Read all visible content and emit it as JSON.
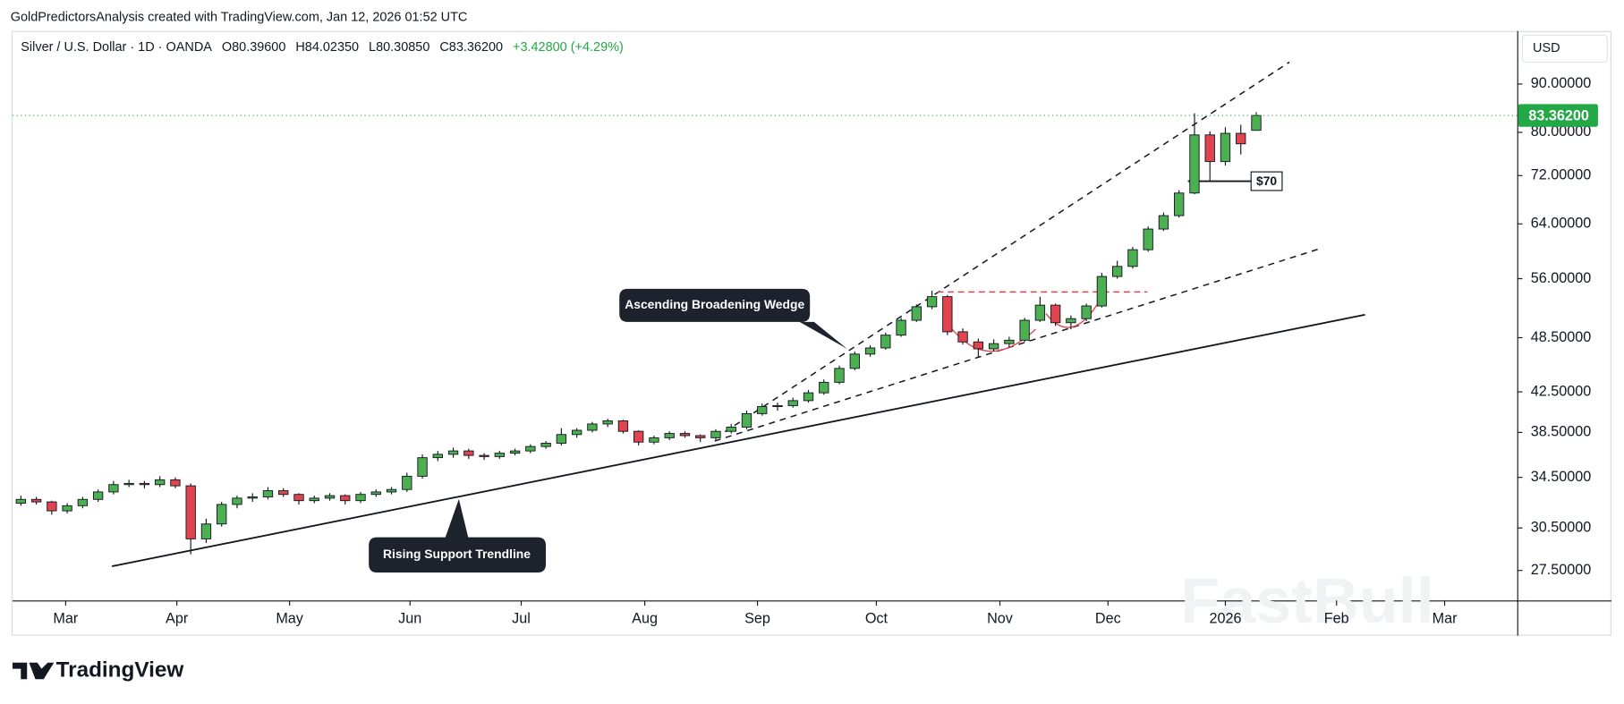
{
  "header": "GoldPredictorsAnalysis created with TradingView.com, Jan 12, 2026 01:52 UTC",
  "chart_data": {
    "type": "candlestick",
    "title": "Silver / U.S. Dollar · 1D · OANDA",
    "ohlc_legend": [
      "O80.39600",
      "H84.02350",
      "L80.30850",
      "C83.36200",
      "+3.42800 (+4.29%)"
    ],
    "currency": "USD",
    "log_scale": true,
    "grid": false,
    "up_color": "#4caf50",
    "down_color": "#e0454f",
    "last_label": "83.36200",
    "last_label_color": "#22a845",
    "open": [
      32.4,
      32.7,
      32.5,
      31.8,
      32.2,
      32.7,
      33.3,
      33.9,
      34.0,
      33.9,
      34.3,
      33.8,
      29.7,
      30.8,
      32.3,
      32.8,
      32.9,
      33.4,
      33.1,
      32.6,
      32.8,
      33.0,
      32.6,
      33.1,
      33.3,
      33.5,
      34.6,
      36.2,
      36.5,
      36.8,
      36.4,
      36.3,
      36.6,
      36.8,
      37.2,
      37.5,
      38.3,
      38.7,
      39.3,
      39.6,
      38.6,
      37.6,
      38.0,
      38.4,
      38.2,
      38.0,
      38.6,
      39.0,
      40.3,
      41.0,
      41.1,
      41.6,
      42.4,
      43.5,
      45.0,
      46.6,
      47.3,
      48.8,
      50.6,
      52.3,
      53.6,
      49.2,
      48.0,
      47.2,
      47.8,
      48.2,
      50.6,
      52.5,
      50.3,
      50.8,
      52.4,
      56.3,
      57.7,
      60.1,
      63.2,
      65.3,
      69.0,
      79.5,
      74.5,
      79.8,
      80.396
    ],
    "high": [
      33.0,
      32.9,
      32.6,
      32.4,
      32.9,
      33.5,
      34.2,
      34.3,
      34.2,
      34.6,
      34.5,
      34.0,
      31.2,
      32.5,
      33.0,
      33.2,
      33.7,
      33.6,
      33.2,
      33.0,
      33.2,
      33.1,
      33.3,
      33.5,
      33.7,
      34.9,
      36.5,
      36.8,
      37.1,
      37.0,
      36.6,
      36.8,
      37.0,
      37.4,
      37.7,
      38.9,
      38.9,
      39.5,
      39.8,
      39.7,
      38.7,
      38.2,
      38.6,
      38.6,
      38.3,
      38.8,
      39.3,
      40.6,
      41.3,
      41.4,
      41.9,
      42.7,
      43.8,
      45.3,
      46.9,
      47.6,
      49.1,
      50.9,
      52.6,
      54.4,
      53.8,
      49.6,
      48.4,
      48.3,
      48.6,
      50.9,
      53.6,
      52.7,
      51.2,
      52.7,
      56.8,
      58.5,
      60.5,
      63.6,
      65.8,
      69.5,
      83.8,
      80.2,
      81.0,
      81.5,
      84.0235
    ],
    "low": [
      32.2,
      32.3,
      31.5,
      31.6,
      32.0,
      32.5,
      33.1,
      33.7,
      33.6,
      33.7,
      33.6,
      28.6,
      29.4,
      30.6,
      32.0,
      32.5,
      32.7,
      32.9,
      32.3,
      32.4,
      32.6,
      32.3,
      32.4,
      32.9,
      33.1,
      33.3,
      34.4,
      35.9,
      36.2,
      36.1,
      36.0,
      36.1,
      36.4,
      36.6,
      37.0,
      37.3,
      38.0,
      38.5,
      39.0,
      38.4,
      37.3,
      37.4,
      37.8,
      38.0,
      37.6,
      37.8,
      38.4,
      38.8,
      40.1,
      40.6,
      40.9,
      41.4,
      42.2,
      43.3,
      44.8,
      46.3,
      47.1,
      48.6,
      50.4,
      52.0,
      48.8,
      47.7,
      46.2,
      46.9,
      47.4,
      48.0,
      50.4,
      49.9,
      49.5,
      50.5,
      52.2,
      56.0,
      57.4,
      59.8,
      62.9,
      65.0,
      68.8,
      71.0,
      73.8,
      75.8,
      80.3085
    ],
    "close": [
      32.7,
      32.5,
      31.8,
      32.2,
      32.7,
      33.3,
      33.9,
      34.0,
      33.9,
      34.3,
      33.8,
      29.7,
      30.8,
      32.3,
      32.8,
      32.9,
      33.4,
      33.1,
      32.6,
      32.8,
      33.0,
      32.6,
      33.1,
      33.3,
      33.5,
      34.6,
      36.2,
      36.5,
      36.8,
      36.4,
      36.3,
      36.6,
      36.8,
      37.2,
      37.5,
      38.3,
      38.7,
      39.3,
      39.6,
      38.6,
      37.6,
      38.0,
      38.4,
      38.2,
      38.0,
      38.6,
      39.0,
      40.3,
      41.0,
      41.1,
      41.6,
      42.4,
      43.5,
      45.0,
      46.6,
      47.3,
      48.8,
      50.6,
      52.3,
      53.6,
      49.2,
      48.0,
      47.2,
      47.8,
      48.2,
      50.6,
      52.5,
      50.3,
      50.8,
      52.4,
      56.3,
      57.7,
      60.1,
      63.2,
      65.3,
      69.0,
      79.5,
      74.5,
      79.8,
      77.8,
      83.362
    ],
    "xlim": [
      -0.54,
      96.9
    ],
    "xticks": [
      {
        "value": 2.9,
        "label": "Mar"
      },
      {
        "value": 10.1,
        "label": "Apr"
      },
      {
        "value": 17.4,
        "label": "May"
      },
      {
        "value": 25.2,
        "label": "Jun"
      },
      {
        "value": 32.4,
        "label": "Jul"
      },
      {
        "value": 40.4,
        "label": "Aug"
      },
      {
        "value": 47.7,
        "label": "Sep"
      },
      {
        "value": 55.4,
        "label": "Oct"
      },
      {
        "value": 63.4,
        "label": "Nov"
      },
      {
        "value": 70.4,
        "label": "Dec"
      },
      {
        "value": 78.0,
        "label": "2026"
      },
      {
        "value": 85.2,
        "label": "Feb"
      },
      {
        "value": 92.2,
        "label": "Mar"
      }
    ],
    "ylim": [
      25.56,
      102.4
    ],
    "yticks": [
      {
        "value": 27.5,
        "label": "27.50000"
      },
      {
        "value": 30.5,
        "label": "30.50000"
      },
      {
        "value": 34.5,
        "label": "34.50000"
      },
      {
        "value": 38.5,
        "label": "38.50000"
      },
      {
        "value": 42.5,
        "label": "42.50000"
      },
      {
        "value": 48.5,
        "label": "48.50000"
      },
      {
        "value": 56,
        "label": "56.00000"
      },
      {
        "value": 64,
        "label": "64.00000"
      },
      {
        "value": 72,
        "label": "72.00000"
      },
      {
        "value": 80,
        "label": "80.00000"
      },
      {
        "value": 90,
        "label": "90.00000"
      }
    ],
    "annotations": [
      "Ascending Broadening Wedge",
      "Rising Support Trendline",
      "$70"
    ],
    "watermark": "FastBull"
  },
  "footer": {
    "brand": "TradingView"
  }
}
